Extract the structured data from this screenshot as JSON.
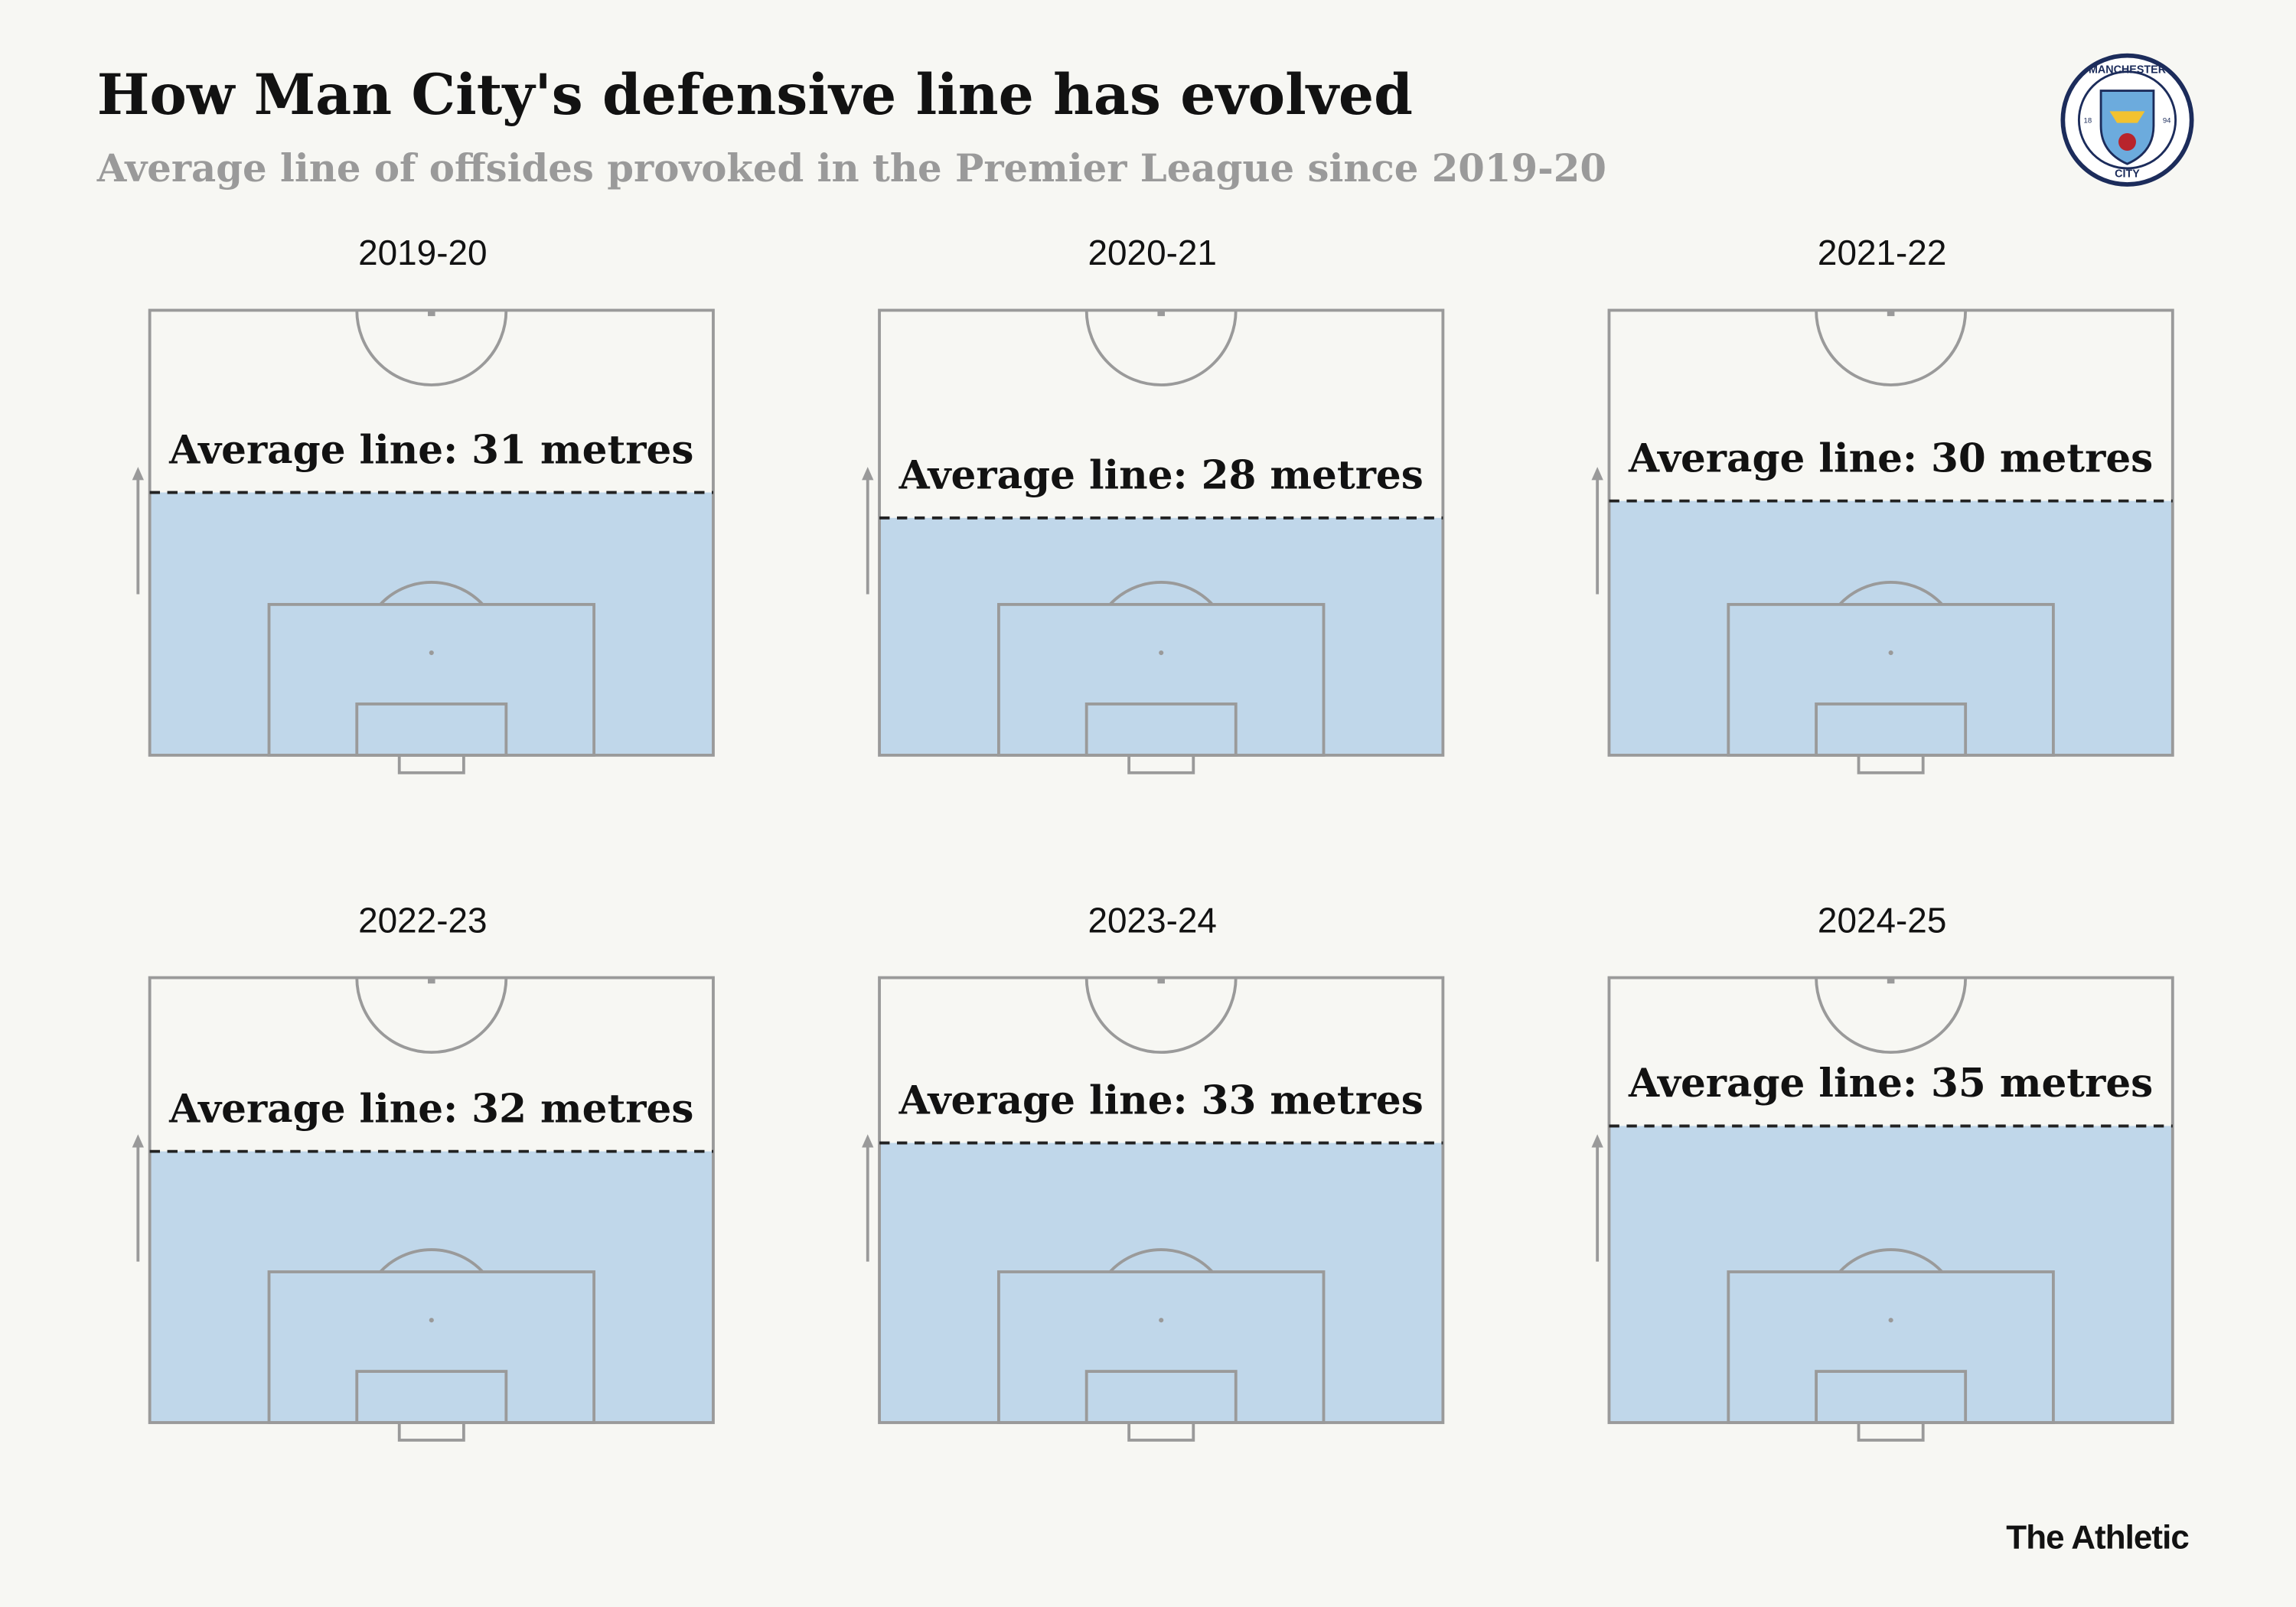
{
  "chart_data": {
    "type": "pitch",
    "title": "How Man City's defensive line has evolved",
    "subtitle": "Average line of offsides provoked in the Premier League since 2019-20",
    "categories": [
      "2019-20",
      "2020-21",
      "2021-22",
      "2022-23",
      "2023-24",
      "2024-25"
    ],
    "values": [
      31,
      28,
      30,
      32,
      33,
      35
    ],
    "value_labels": [
      "Average line: 31 metres",
      "Average line: 28 metres",
      "Average line: 30 metres",
      "Average line: 32 metres",
      "Average line: 33 metres",
      "Average line: 35 metres"
    ],
    "ylim": [
      0,
      52.5
    ],
    "color": "#c0d7ea",
    "source": "The Athletic",
    "badge": {
      "top": "MANCHESTER",
      "bottom": "CITY",
      "left": "18",
      "right": "94"
    }
  }
}
